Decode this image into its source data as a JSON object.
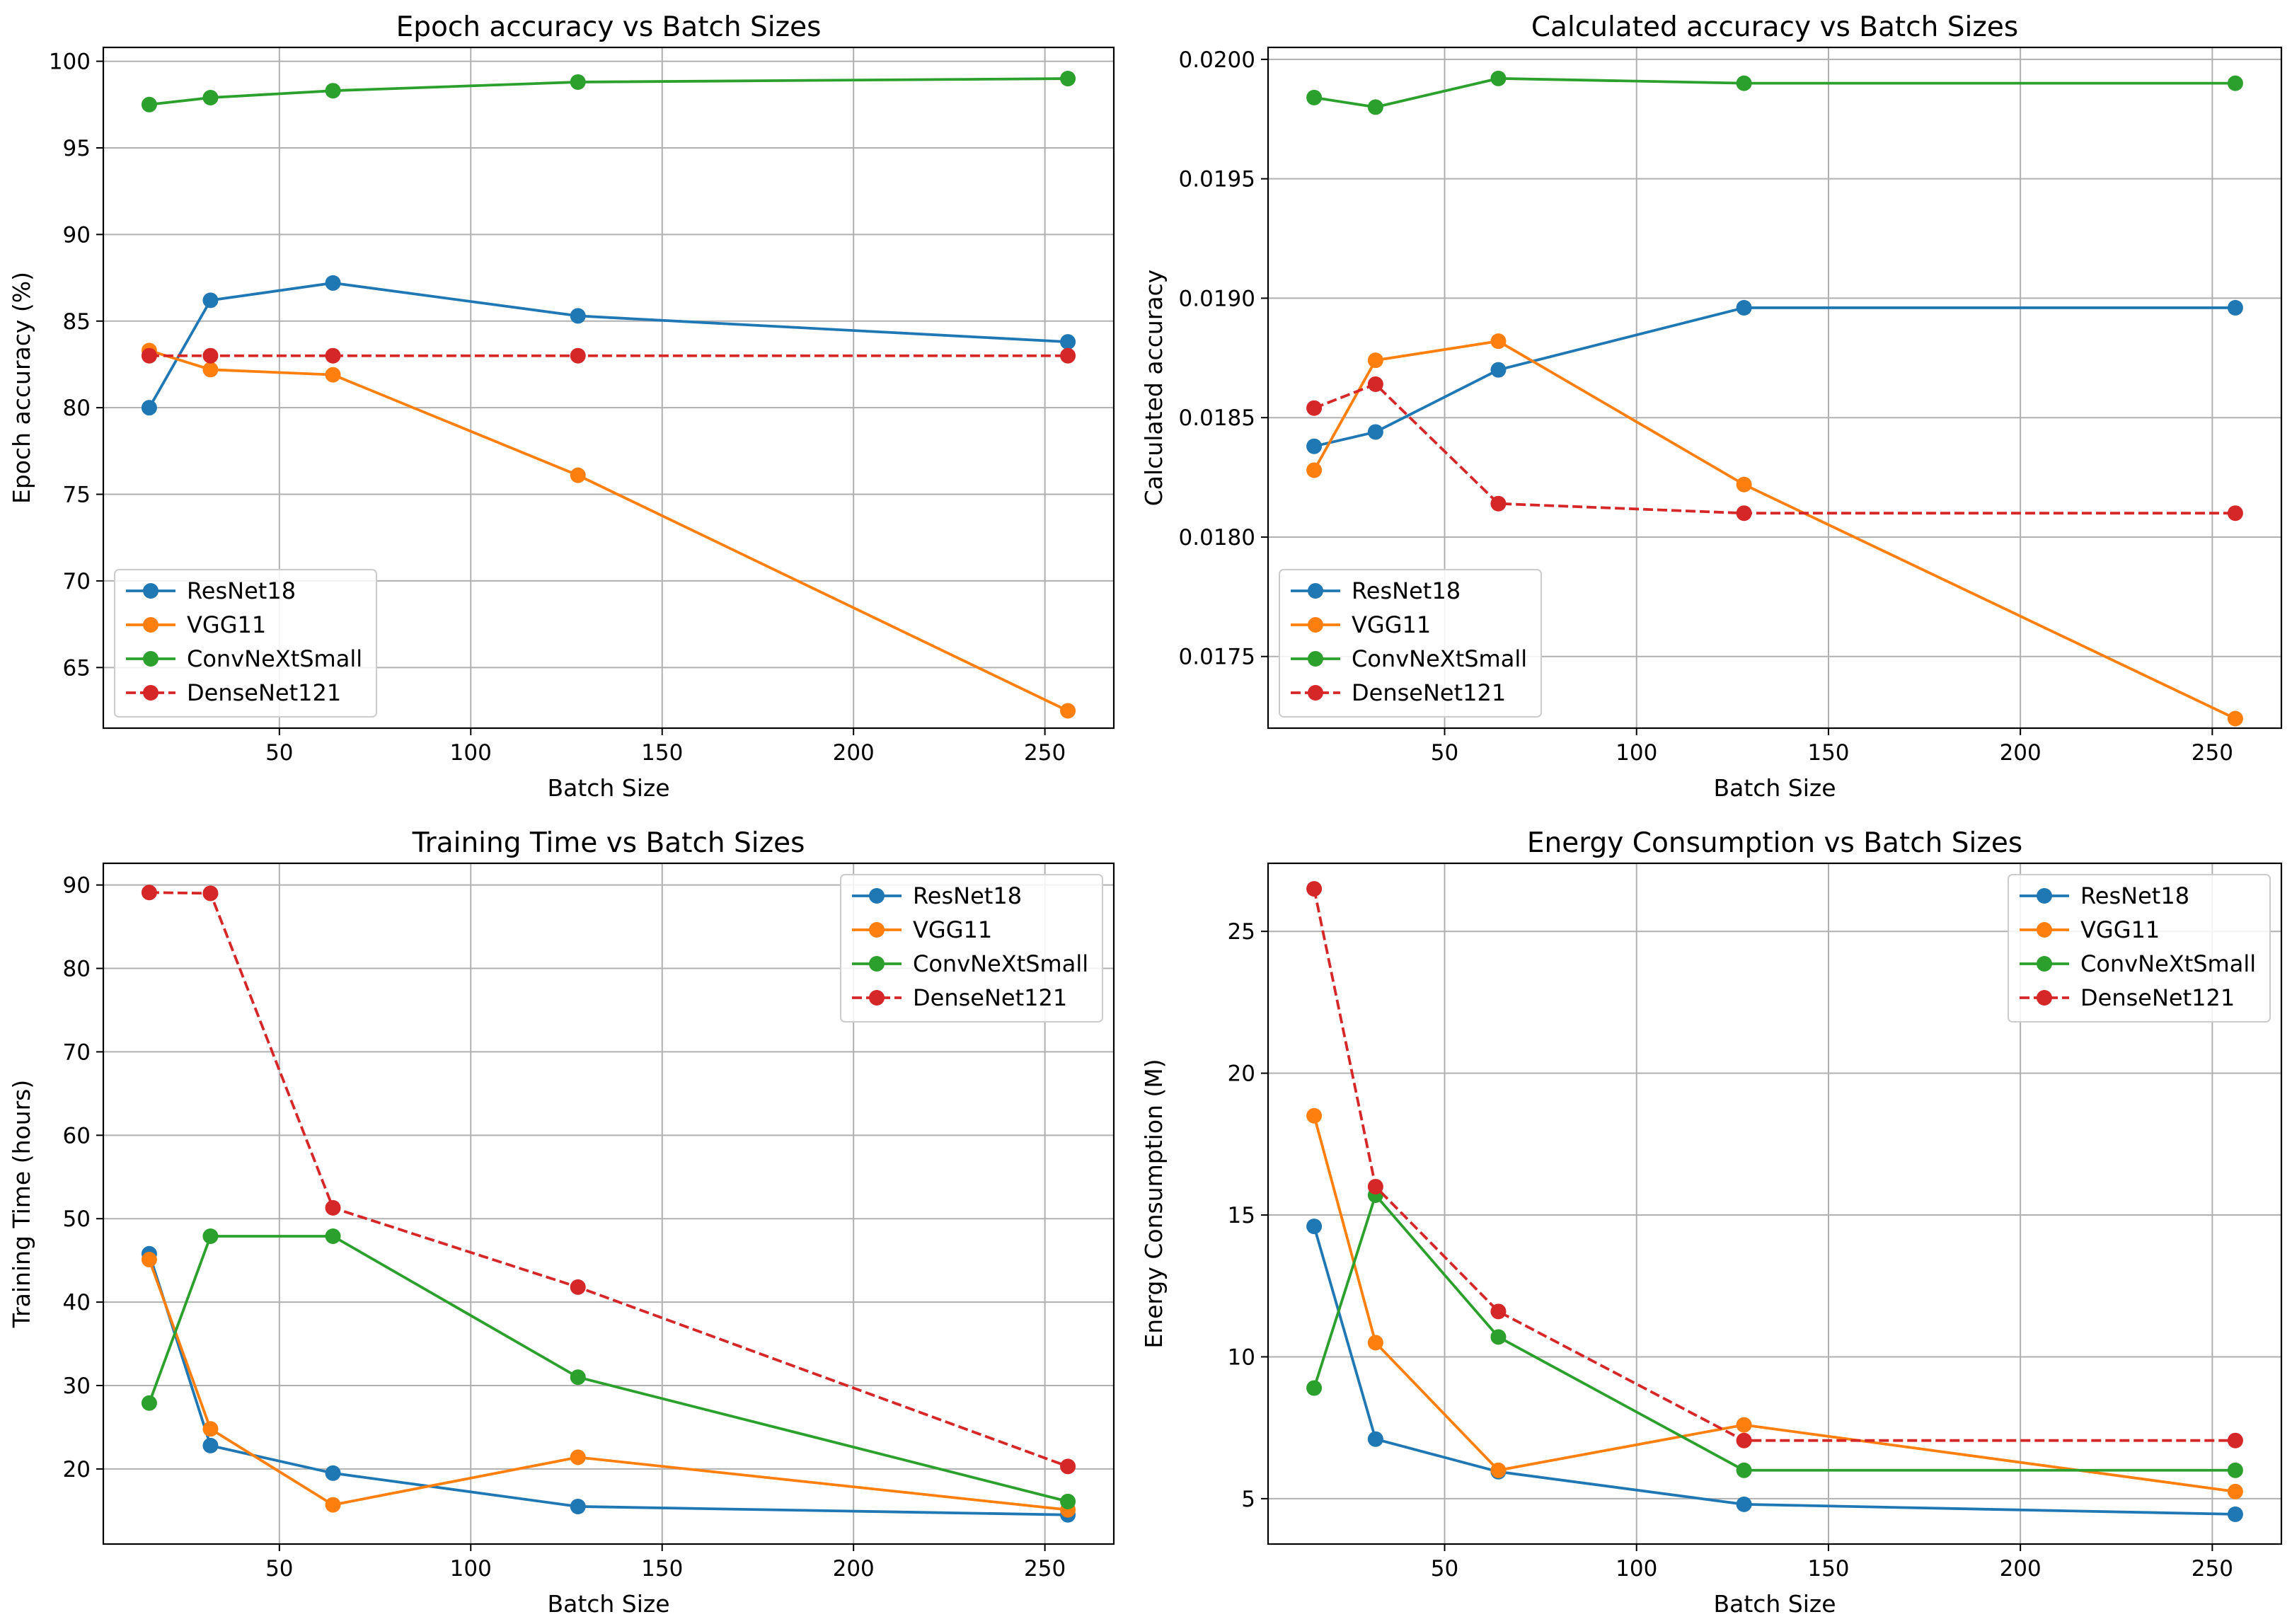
{
  "chart_data": [
    {
      "type": "line",
      "title": "Epoch accuracy vs Batch Sizes",
      "xlabel": "Batch Size",
      "ylabel": "Epoch accuracy (%)",
      "xlim": [
        4,
        268
      ],
      "ylim": [
        61.5,
        100.8
      ],
      "xticks": [
        50,
        100,
        150,
        200,
        250
      ],
      "yticks": [
        65,
        70,
        75,
        80,
        85,
        90,
        95,
        100
      ],
      "ytick_labels": [
        "65",
        "70",
        "75",
        "80",
        "85",
        "90",
        "95",
        "100"
      ],
      "grid": true,
      "legend_position": "lower-left",
      "x": [
        16,
        32,
        64,
        128,
        256
      ],
      "series": [
        {
          "name": "ResNet18",
          "color": "#1f77b4",
          "dashed": false,
          "values": [
            80.0,
            86.2,
            87.2,
            85.3,
            83.8
          ]
        },
        {
          "name": "VGG11",
          "color": "#ff7f0e",
          "dashed": false,
          "values": [
            83.3,
            82.2,
            81.9,
            76.1,
            62.5
          ]
        },
        {
          "name": "ConvNeXtSmall",
          "color": "#2ca02c",
          "dashed": false,
          "values": [
            97.5,
            97.9,
            98.3,
            98.8,
            99.0
          ]
        },
        {
          "name": "DenseNet121",
          "color": "#d62728",
          "dashed": true,
          "values": [
            83.0,
            83.0,
            83.0,
            83.0,
            83.0
          ]
        }
      ]
    },
    {
      "type": "line",
      "title": "Calculated accuracy vs Batch Sizes",
      "xlabel": "Batch Size",
      "ylabel": "Calculated accuracy",
      "xlim": [
        4,
        268
      ],
      "ylim": [
        0.0172,
        0.02005
      ],
      "xticks": [
        50,
        100,
        150,
        200,
        250
      ],
      "yticks": [
        0.0175,
        0.018,
        0.0185,
        0.019,
        0.0195,
        0.02
      ],
      "ytick_labels": [
        "0.0175",
        "0.0180",
        "0.0185",
        "0.0190",
        "0.0195",
        "0.0200"
      ],
      "grid": true,
      "legend_position": "lower-left",
      "x": [
        16,
        32,
        64,
        128,
        256
      ],
      "series": [
        {
          "name": "ResNet18",
          "color": "#1f77b4",
          "dashed": false,
          "values": [
            0.01838,
            0.01844,
            0.0187,
            0.01896,
            0.01896
          ]
        },
        {
          "name": "VGG11",
          "color": "#ff7f0e",
          "dashed": false,
          "values": [
            0.01828,
            0.01874,
            0.01882,
            0.01822,
            0.01724
          ]
        },
        {
          "name": "ConvNeXtSmall",
          "color": "#2ca02c",
          "dashed": false,
          "values": [
            0.01984,
            0.0198,
            0.01992,
            0.0199,
            0.0199
          ]
        },
        {
          "name": "DenseNet121",
          "color": "#d62728",
          "dashed": true,
          "values": [
            0.01854,
            0.01864,
            0.01814,
            0.0181,
            0.0181
          ]
        }
      ]
    },
    {
      "type": "line",
      "title": "Training Time vs Batch Sizes",
      "xlabel": "Batch Size",
      "ylabel": "Training Time (hours)",
      "xlim": [
        4,
        268
      ],
      "ylim": [
        11.0,
        92.6
      ],
      "xticks": [
        50,
        100,
        150,
        200,
        250
      ],
      "yticks": [
        20,
        30,
        40,
        50,
        60,
        70,
        80,
        90
      ],
      "ytick_labels": [
        "20",
        "30",
        "40",
        "50",
        "60",
        "70",
        "80",
        "90"
      ],
      "grid": true,
      "legend_position": "upper-right",
      "x": [
        16,
        32,
        64,
        128,
        256
      ],
      "series": [
        {
          "name": "ResNet18",
          "color": "#1f77b4",
          "dashed": false,
          "values": [
            45.8,
            22.8,
            19.5,
            15.5,
            14.5
          ]
        },
        {
          "name": "VGG11",
          "color": "#ff7f0e",
          "dashed": false,
          "values": [
            45.1,
            24.8,
            15.7,
            21.4,
            15.1
          ]
        },
        {
          "name": "ConvNeXtSmall",
          "color": "#2ca02c",
          "dashed": false,
          "values": [
            27.9,
            47.9,
            47.9,
            31.0,
            16.1
          ]
        },
        {
          "name": "DenseNet121",
          "color": "#d62728",
          "dashed": true,
          "values": [
            89.1,
            89.0,
            51.3,
            41.8,
            20.3
          ]
        }
      ]
    },
    {
      "type": "line",
      "title": "Energy Consumption vs Batch Sizes",
      "xlabel": "Batch Size",
      "ylabel": "Energy Consumption (M)",
      "xlim": [
        4,
        268
      ],
      "ylim": [
        3.4,
        27.4
      ],
      "xticks": [
        50,
        100,
        150,
        200,
        250
      ],
      "yticks": [
        5,
        10,
        15,
        20,
        25
      ],
      "ytick_labels": [
        "5",
        "10",
        "15",
        "20",
        "25"
      ],
      "grid": true,
      "legend_position": "upper-right",
      "x": [
        16,
        32,
        64,
        128,
        256
      ],
      "series": [
        {
          "name": "ResNet18",
          "color": "#1f77b4",
          "dashed": false,
          "values": [
            14.6,
            7.1,
            5.95,
            4.8,
            4.45
          ]
        },
        {
          "name": "VGG11",
          "color": "#ff7f0e",
          "dashed": false,
          "values": [
            18.5,
            10.5,
            6.0,
            7.6,
            5.25
          ]
        },
        {
          "name": "ConvNeXtSmall",
          "color": "#2ca02c",
          "dashed": false,
          "values": [
            8.9,
            15.7,
            10.7,
            6.0,
            6.0
          ]
        },
        {
          "name": "DenseNet121",
          "color": "#d62728",
          "dashed": true,
          "values": [
            26.5,
            16.0,
            11.6,
            7.05,
            7.05
          ]
        }
      ]
    }
  ]
}
